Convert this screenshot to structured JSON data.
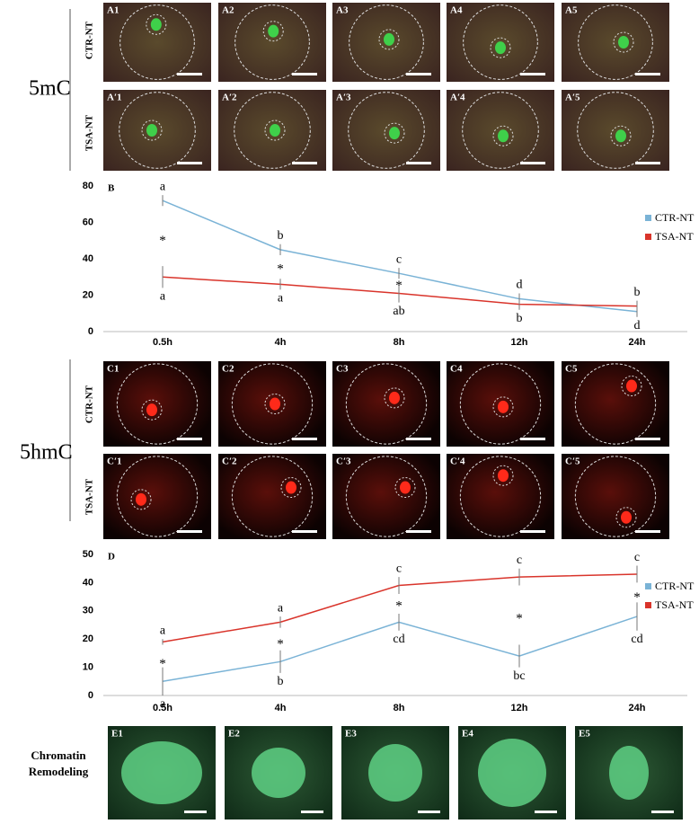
{
  "figure": {
    "group_labels": [
      "5mC",
      "5hmC"
    ],
    "row_labels": [
      "CTR-NT",
      "TSA-NT",
      "CTR-NT",
      "TSA-NT"
    ],
    "panels_a": [
      "A1",
      "A2",
      "A3",
      "A4",
      "A5"
    ],
    "panels_a_prime": [
      "A′1",
      "A′2",
      "A′3",
      "A′4",
      "A′5"
    ],
    "panels_c": [
      "C1",
      "C2",
      "C3",
      "C4",
      "C5"
    ],
    "panels_c_prime": [
      "C′1",
      "C′2",
      "C′3",
      "C′4",
      "C′5"
    ],
    "e_title": [
      "Chromatin",
      "Remodeling"
    ],
    "panels_e": [
      "E1",
      "E2",
      "E3",
      "E4",
      "E5"
    ]
  },
  "chart_data": [
    {
      "type": "line",
      "panel_label": "B",
      "categories": [
        "0.5h",
        "4h",
        "8h",
        "12h",
        "24h"
      ],
      "series": [
        {
          "name": "CTR-NT",
          "color": "#7ab3d6",
          "values": [
            72,
            45,
            32,
            18,
            11
          ],
          "errors": [
            3,
            3,
            3,
            3,
            3
          ],
          "letters": [
            "a",
            "b",
            "c",
            "d",
            "d"
          ]
        },
        {
          "name": "TSA-NT",
          "color": "#d9342b",
          "values": [
            30,
            26,
            21,
            15,
            14
          ],
          "errors": [
            6,
            3,
            5,
            3,
            3
          ],
          "letters": [
            "a",
            "a",
            "ab",
            "b",
            "b"
          ]
        }
      ],
      "significance": [
        "*",
        "*",
        "*",
        null,
        null
      ],
      "ylim": [
        0,
        80
      ],
      "yticks": [
        0,
        20,
        40,
        60,
        80
      ],
      "legend": "right"
    },
    {
      "type": "line",
      "panel_label": "D",
      "categories": [
        "0.5h",
        "4h",
        "8h",
        "12h",
        "24h"
      ],
      "series": [
        {
          "name": "CTR-NT",
          "color": "#7ab3d6",
          "values": [
            5,
            12,
            26,
            14,
            28
          ],
          "errors": [
            5,
            4,
            3,
            4,
            5
          ],
          "letters": [
            "a",
            "b",
            "cd",
            "bc",
            "cd"
          ]
        },
        {
          "name": "TSA-NT",
          "color": "#d9342b",
          "values": [
            19,
            26,
            39,
            42,
            43
          ],
          "errors": [
            1,
            2,
            3,
            3,
            3
          ],
          "letters": [
            "a",
            "a",
            "c",
            "c",
            "c"
          ]
        }
      ],
      "significance": [
        "*",
        "*",
        "*",
        "*",
        "*"
      ],
      "ylim": [
        0,
        50
      ],
      "yticks": [
        0,
        10,
        20,
        30,
        40,
        50
      ],
      "legend": "right"
    }
  ]
}
